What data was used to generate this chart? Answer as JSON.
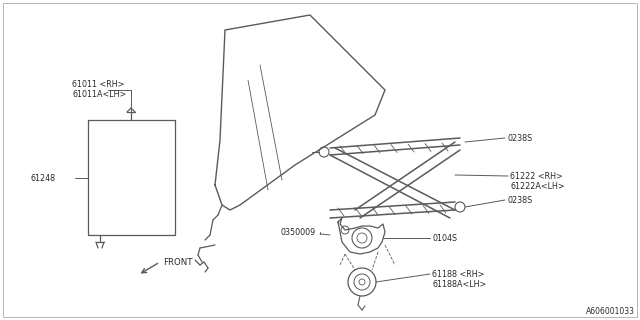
{
  "bg_color": "#ffffff",
  "line_color": "#4a4a4a",
  "text_color": "#2a2a2a",
  "diagram_color": "#5a5a5a",
  "part_number_label": "A606001033",
  "labels": {
    "part1_line1": "61011 <RH>",
    "part1_line2": "61011A<LH>",
    "part2": "61248",
    "part3_line1": "61222 <RH>",
    "part3_line2": "61222A<LH>",
    "part4": "0238S",
    "part5": "0238S",
    "part6": "0350009",
    "part7": "0104S",
    "part8_line1": "61188 <RH>",
    "part8_line2": "61188A<LH>",
    "front": "FRONT"
  }
}
